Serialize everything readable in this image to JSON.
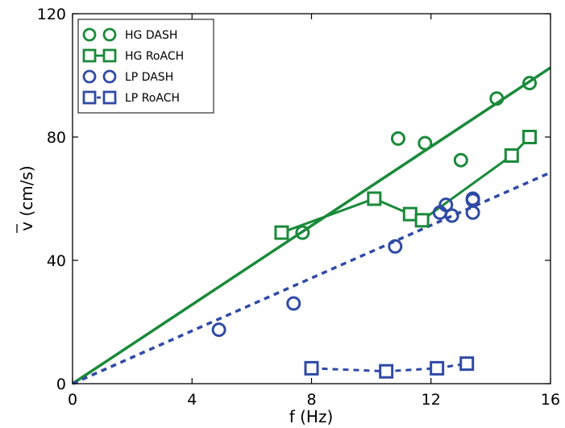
{
  "chart_data": {
    "type": "scatter",
    "xlabel": "f (Hz)",
    "ylabel": "v (cm/s)",
    "xlim": [
      0,
      16
    ],
    "ylim": [
      0,
      120
    ],
    "xticks": [
      "0",
      "4",
      "8",
      "12",
      "16"
    ],
    "yticks": [
      "0",
      "40",
      "80",
      "120"
    ],
    "grid": false,
    "legend_position": "top-left",
    "series": [
      {
        "name": "HG DASH",
        "color": "#1a8a3a",
        "marker": "circle",
        "line": "none",
        "x": [
          7.7,
          10.9,
          11.8,
          13.0,
          14.2,
          15.3
        ],
        "y": [
          49,
          79.5,
          78,
          72.5,
          92.5,
          97.5
        ]
      },
      {
        "name": "HG RoACH",
        "color": "#1a8a3a",
        "marker": "square",
        "line": "solid",
        "x": [
          7.0,
          10.1,
          11.3,
          11.7,
          14.7,
          15.3
        ],
        "y": [
          49,
          60,
          55,
          53,
          74,
          80
        ]
      },
      {
        "name": "LP DASH",
        "color": "#2f4aa5",
        "marker": "circle",
        "line": "none",
        "x": [
          4.9,
          7.4,
          10.8,
          12.3,
          12.5,
          12.7,
          13.4,
          13.4,
          13.4
        ],
        "y": [
          17.5,
          26,
          44.5,
          55.5,
          58,
          54.5,
          60,
          59.5,
          55.5
        ]
      },
      {
        "name": "LP RoACH",
        "color": "#2f4aa5",
        "marker": "square",
        "line": "dashed",
        "x": [
          8.0,
          10.5,
          12.2,
          13.2
        ],
        "y": [
          5,
          4,
          5,
          6.5
        ]
      }
    ],
    "fits": [
      {
        "series": "HG DASH",
        "color": "#1a8a3a",
        "style": "solid",
        "x": [
          0,
          16
        ],
        "y": [
          0,
          102.5
        ]
      },
      {
        "series": "LP DASH",
        "color": "#2f4aa5",
        "style": "dashed",
        "x": [
          0,
          16
        ],
        "y": [
          0,
          68.5
        ]
      }
    ]
  }
}
